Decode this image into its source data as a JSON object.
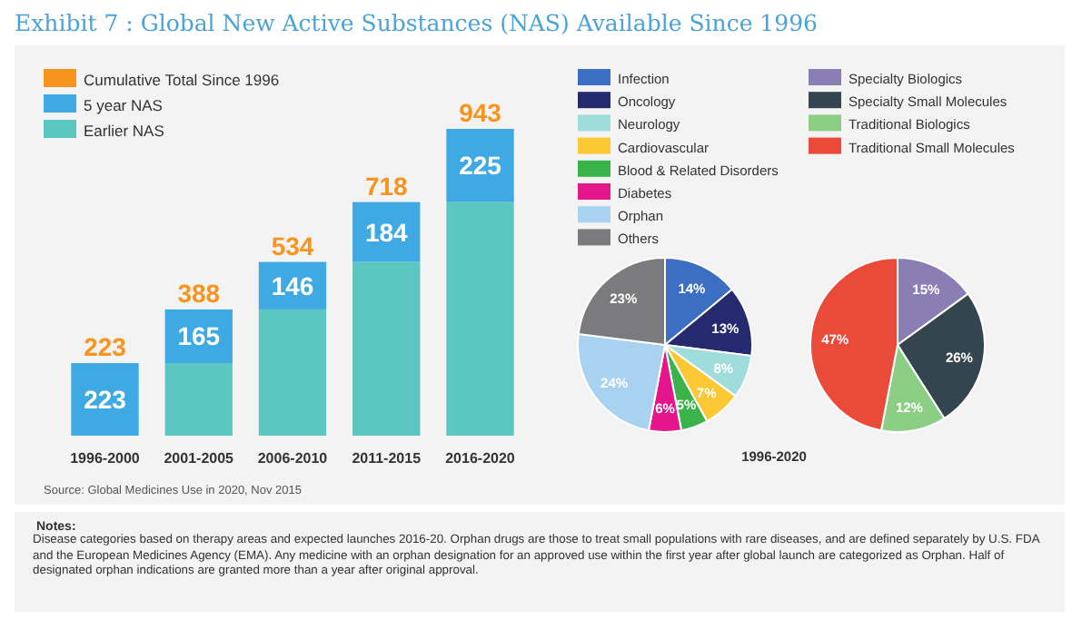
{
  "chart_data": [
    {
      "type": "bar",
      "title": "Exhibit 7 : Global New Active Substances (NAS) Available Since 1996",
      "categories": [
        "1996-2000",
        "2001-2005",
        "2006-2010",
        "2011-2015",
        "2016-2020"
      ],
      "stacked": true,
      "legend": "top left",
      "series": [
        {
          "name": "Earlier NAS",
          "color": "#5cc6c0",
          "values": [
            0,
            223,
            388,
            534,
            718
          ]
        },
        {
          "name": "5 year NAS",
          "color": "#3fa9e3",
          "values": [
            223,
            165,
            146,
            184,
            225
          ],
          "value_labels": [
            "223",
            "165",
            "146",
            "184",
            "225"
          ]
        },
        {
          "name": "Cumulative Total Since 1996",
          "color": "#f7941d",
          "values": [
            null,
            null,
            null,
            null,
            null
          ]
        }
      ],
      "totals": [
        "223",
        "388",
        "534",
        "718",
        "943"
      ],
      "annotations": [
        "Source: Global Medicines Use in 2020, Nov 2015",
        "Notes:",
        "Disease categories based on therapy areas and expected launches 2016-20. Orphan drugs are those to treat small populations with rare diseases, and are defined separately by U.S. FDA and the European Medicines Agency (EMA). Any medicine with an orphan designation for an approved use within the first year after global launch are categorized as Orphan. Half of designated orphan indications are granted more than a year after original approval."
      ]
    },
    {
      "type": "pie",
      "xlabel": "1996-2020",
      "legend": "top",
      "categories": [
        "Infection",
        "Oncology",
        "Neurology",
        "Cardiovascular",
        "Blood & Related Disorders",
        "Diabetes",
        "Orphan",
        "Others"
      ],
      "values": [
        14,
        13,
        8,
        7,
        5,
        6,
        24,
        23
      ],
      "value_labels": [
        "14%",
        "13%",
        "8%",
        "7%",
        "5%",
        "6%",
        "24%",
        "23%"
      ],
      "colors": [
        "#3a6fc4",
        "#25296e",
        "#9fdcdc",
        "#fcc833",
        "#3ab34a",
        "#e5168c",
        "#a9d2f0",
        "#7b7b7d"
      ]
    },
    {
      "type": "pie",
      "legend": "top",
      "categories": [
        "Specialty Biologics",
        "Specialty Small Molecules",
        "Traditional Biologics",
        "Traditional Small Molecules"
      ],
      "values": [
        15,
        26,
        12,
        47
      ],
      "value_labels": [
        "15%",
        "26%",
        "12%",
        "47%"
      ],
      "colors": [
        "#8a7fb5",
        "#34454f",
        "#8ccf84",
        "#ea4a3a"
      ]
    }
  ]
}
